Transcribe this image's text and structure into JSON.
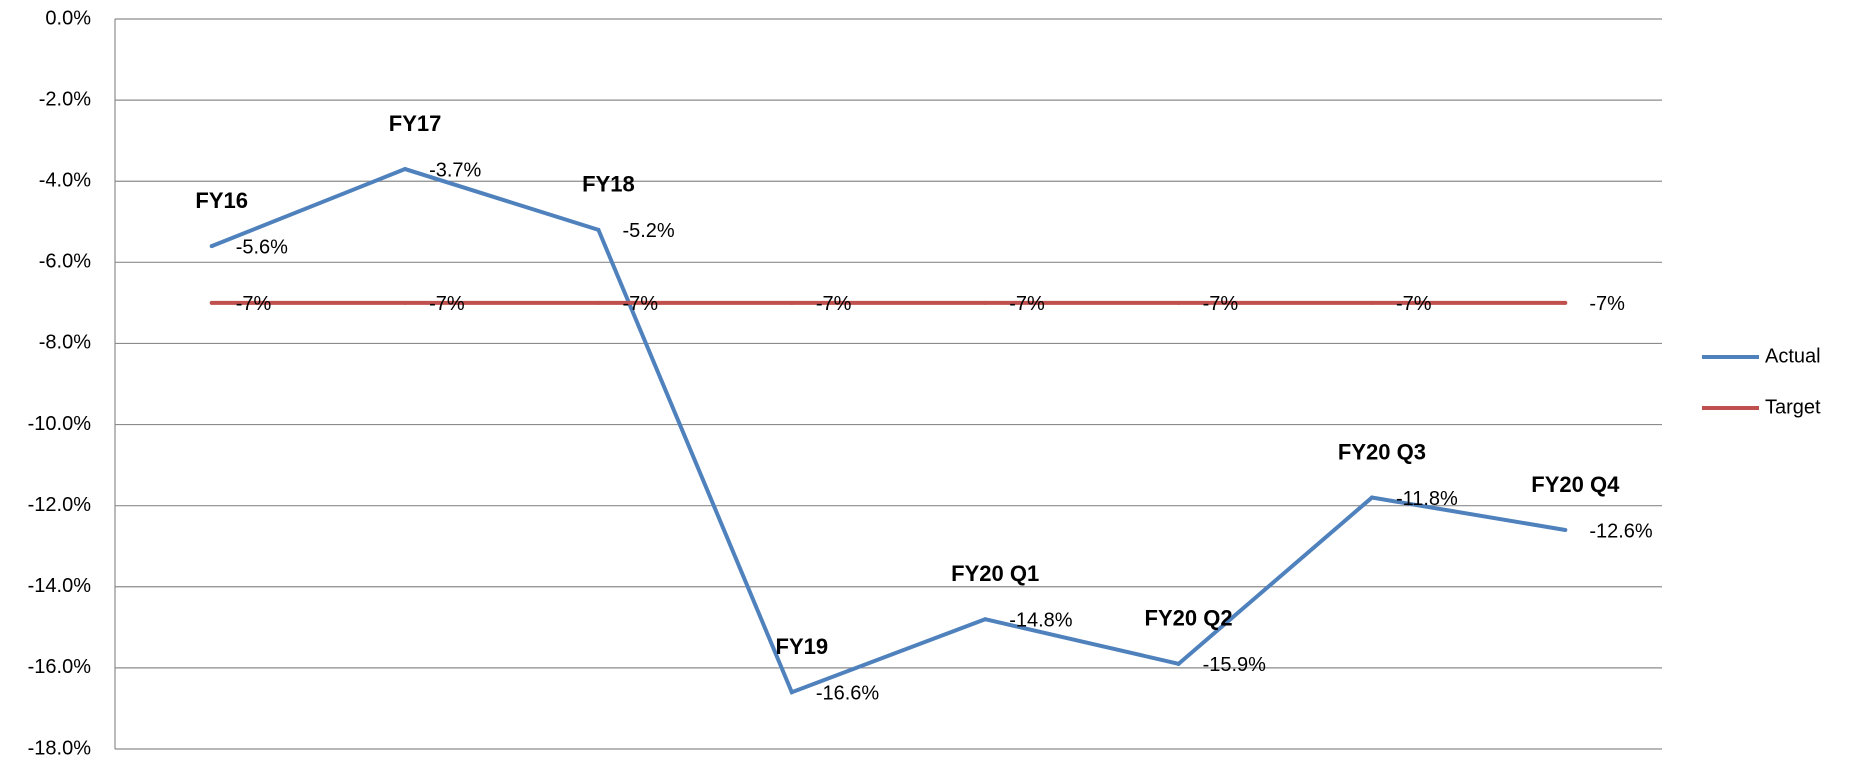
{
  "chart_data": {
    "type": "line",
    "categories": [
      "FY16",
      "FY17",
      "FY18",
      "FY19",
      "FY20 Q1",
      "FY20 Q2",
      "FY20 Q3",
      "FY20 Q4"
    ],
    "series": [
      {
        "name": "Actual",
        "color": "#4f81bd",
        "values": [
          -5.6,
          -3.7,
          -5.2,
          -16.6,
          -14.8,
          -15.9,
          -11.8,
          -12.6
        ],
        "value_labels": [
          "-5.6%",
          "-3.7%",
          "-5.2%",
          "-16.6%",
          "-14.8%",
          "-15.9%",
          "-11.8%",
          "-12.6%"
        ]
      },
      {
        "name": "Target",
        "color": "#c0504d",
        "values": [
          -7,
          -7,
          -7,
          -7,
          -7,
          -7,
          -7,
          -7
        ],
        "value_labels": [
          "-7%",
          "-7%",
          "-7%",
          "-7%",
          "-7%",
          "-7%",
          "-7%",
          "-7%"
        ]
      }
    ],
    "ylim": [
      -18,
      0
    ],
    "yticks": [
      {
        "value": 0,
        "label": "0.0%"
      },
      {
        "value": -2,
        "label": "-2.0%"
      },
      {
        "value": -4,
        "label": "-4.0%"
      },
      {
        "value": -6,
        "label": "-6.0%"
      },
      {
        "value": -8,
        "label": "-8.0%"
      },
      {
        "value": -10,
        "label": "-10.0%"
      },
      {
        "value": -12,
        "label": "-12.0%"
      },
      {
        "value": -14,
        "label": "-14.0%"
      },
      {
        "value": -16,
        "label": "-16.0%"
      },
      {
        "value": -18,
        "label": "-18.0%"
      }
    ],
    "grid": true,
    "legend": "right"
  }
}
